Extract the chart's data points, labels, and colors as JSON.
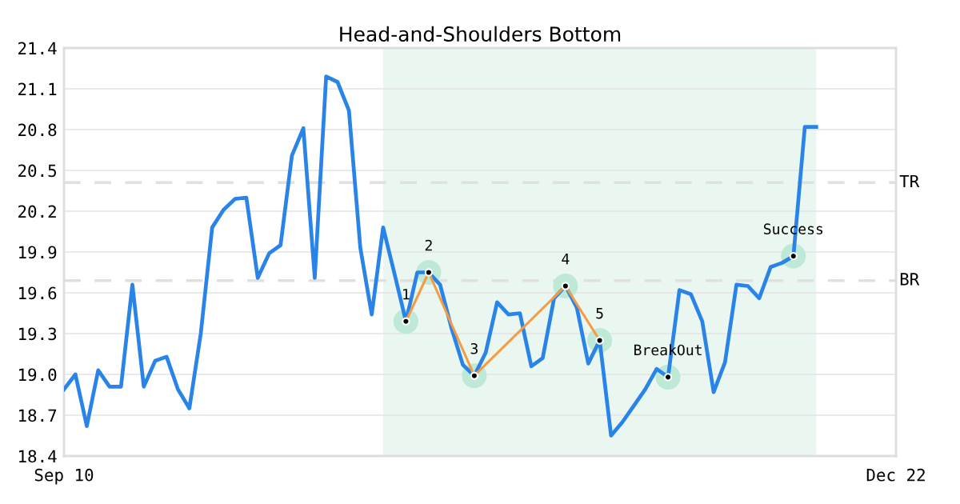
{
  "chart_data": {
    "type": "line",
    "title": "Head-and-Shoulders Bottom",
    "categories": [
      "Sep 10",
      null,
      null,
      null,
      null,
      null,
      null,
      null,
      null,
      null,
      null,
      null,
      null,
      null,
      null,
      null,
      null,
      null,
      null,
      null,
      null,
      null,
      null,
      null,
      null,
      null,
      null,
      null,
      null,
      null,
      null,
      null,
      null,
      null,
      null,
      null,
      null,
      null,
      null,
      null,
      null,
      null,
      null,
      null,
      null,
      null,
      null,
      null,
      null,
      null,
      null,
      null,
      null,
      null,
      null,
      null,
      null,
      null,
      null,
      null,
      null,
      null,
      null,
      null,
      null,
      null,
      null,
      null,
      null,
      null,
      null,
      null,
      null,
      "Dec 22"
    ],
    "ylim": [
      18.4,
      21.4
    ],
    "yticks": [
      18.4,
      18.7,
      {
        "value": 19.0,
        "label": "19.0"
      },
      19.3,
      19.6,
      19.9,
      20.2,
      20.5,
      20.8,
      21.1,
      21.4
    ],
    "grid": "y",
    "series": [
      {
        "color": "#2a84e8",
        "values": [
          18.89,
          19.0,
          18.62,
          19.03,
          18.91,
          18.91,
          19.66,
          18.91,
          19.1,
          19.13,
          18.89,
          18.75,
          19.3,
          20.08,
          20.21,
          20.29,
          20.3,
          19.71,
          19.89,
          19.95,
          20.61,
          20.81,
          19.71,
          21.19,
          21.15,
          20.94,
          19.93,
          19.44,
          20.08,
          19.74,
          19.39,
          19.75,
          19.75,
          19.66,
          19.34,
          19.07,
          18.99,
          19.16,
          19.53,
          19.44,
          19.45,
          19.06,
          19.12,
          19.56,
          19.65,
          19.49,
          19.08,
          19.25,
          18.55,
          18.65,
          18.77,
          18.89,
          19.04,
          18.98,
          19.62,
          19.59,
          19.39,
          18.87,
          19.09,
          19.66,
          19.65,
          19.56,
          19.79,
          19.82,
          19.87,
          20.82,
          20.82,
          null,
          null,
          null,
          null,
          null,
          null,
          null
        ]
      },
      {
        "type": "line",
        "color": "#f59c42",
        "values": [
          null,
          null,
          null,
          null,
          null,
          null,
          null,
          null,
          null,
          null,
          null,
          null,
          null,
          null,
          null,
          null,
          null,
          null,
          null,
          null,
          null,
          null,
          null,
          null,
          null,
          null,
          null,
          null,
          null,
          null,
          19.39,
          null,
          19.75,
          null,
          null,
          null,
          18.99,
          null,
          null,
          null,
          null,
          null,
          null,
          null,
          19.65,
          null,
          null,
          19.25,
          null,
          null,
          null,
          null,
          null,
          null,
          null,
          null,
          null,
          null,
          null,
          null,
          null,
          null,
          null,
          null,
          null,
          null,
          null,
          null,
          null,
          null,
          null,
          null,
          null,
          null
        ]
      },
      {
        "type": "scatter",
        "color": "#bde9d6",
        "marker": "circle",
        "values": [
          null,
          null,
          null,
          null,
          null,
          null,
          null,
          null,
          null,
          null,
          null,
          null,
          null,
          null,
          null,
          null,
          null,
          null,
          null,
          null,
          null,
          null,
          null,
          null,
          null,
          null,
          null,
          null,
          null,
          null,
          19.39,
          null,
          19.75,
          null,
          null,
          null,
          18.99,
          null,
          null,
          null,
          null,
          null,
          null,
          null,
          19.65,
          null,
          null,
          19.25,
          null,
          null,
          null,
          null,
          null,
          18.98,
          null,
          null,
          null,
          null,
          null,
          null,
          null,
          null,
          null,
          null,
          19.87,
          null,
          null,
          null,
          null,
          null,
          null,
          null,
          null,
          null
        ]
      }
    ],
    "ref_lines": [
      {
        "axis": "y",
        "value": 20.41,
        "label": "TR",
        "color": "#e0e0e0",
        "line_style": "dashed"
      },
      {
        "axis": "y",
        "value": 19.69,
        "label": "BR",
        "color": "#e0e0e0",
        "line_style": "dashed"
      }
    ],
    "annotations": [
      {
        "text": "1",
        "y": 19.39
      },
      {
        "text": "2",
        "y": 19.75
      },
      {
        "text": "3",
        "y": 18.99
      },
      {
        "text": "4",
        "y": 19.65
      },
      {
        "text": "5",
        "y": 19.25
      },
      {
        "text": "BreakOut",
        "y": 18.98
      },
      {
        "text": "Success",
        "y": 19.87
      }
    ]
  }
}
